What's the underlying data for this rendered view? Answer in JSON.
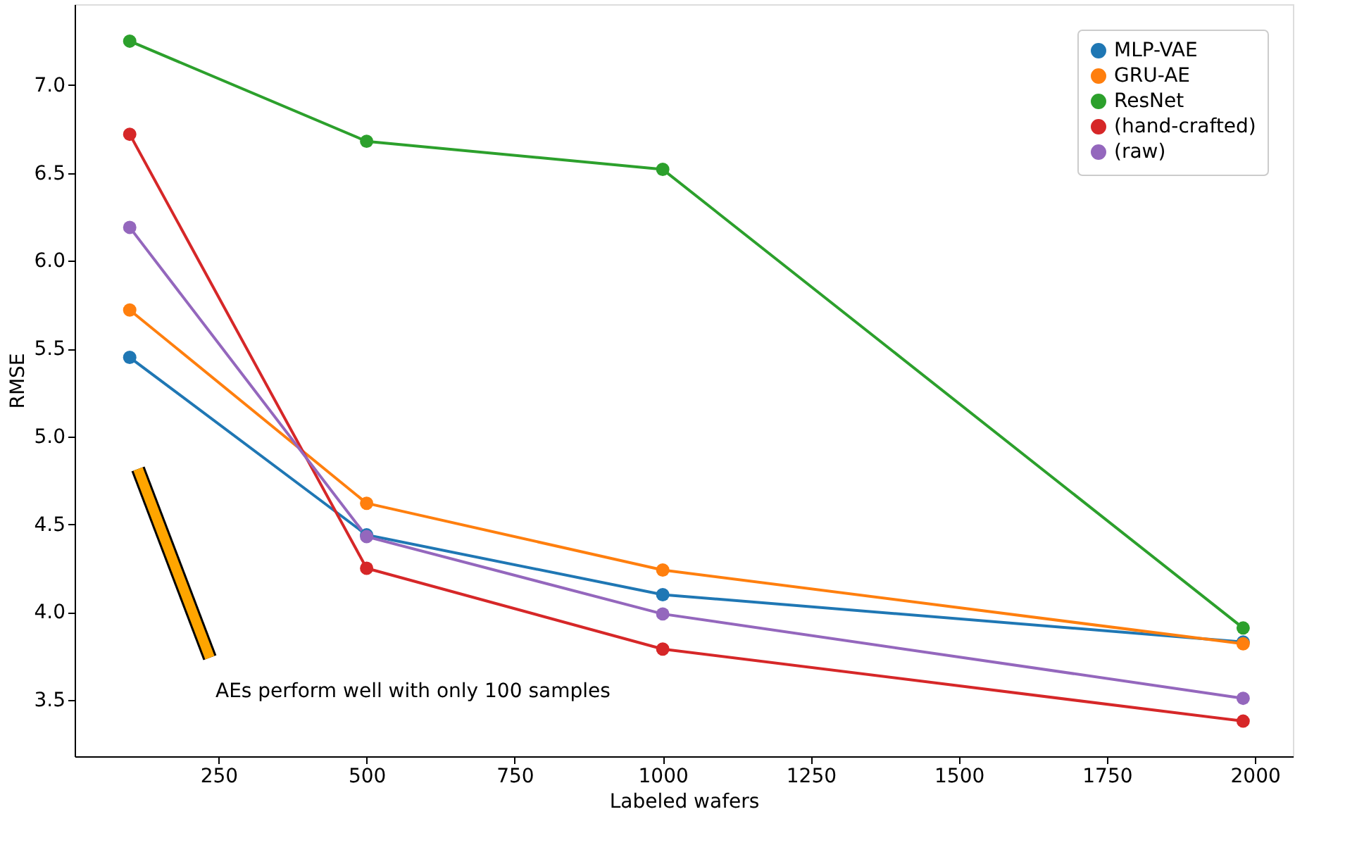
{
  "chart_data": {
    "type": "line",
    "xlabel": "Labeled wafers",
    "ylabel": "RMSE",
    "x": [
      100,
      500,
      1000,
      1980
    ],
    "series": [
      {
        "name": "MLP-VAE",
        "color": "#1f77b4",
        "values": [
          5.45,
          4.44,
          4.1,
          3.83
        ]
      },
      {
        "name": "GRU-AE",
        "color": "#ff7f0e",
        "values": [
          5.72,
          4.62,
          4.24,
          3.82
        ]
      },
      {
        "name": "ResNet",
        "color": "#2ca02c",
        "values": [
          7.25,
          6.68,
          6.52,
          3.91
        ]
      },
      {
        "name": "(hand-crafted)",
        "color": "#d62728",
        "values": [
          6.72,
          4.25,
          3.79,
          3.38
        ]
      },
      {
        "name": "(raw)",
        "color": "#9467bd",
        "values": [
          6.19,
          4.43,
          3.99,
          3.51
        ]
      }
    ],
    "xlim": [
      7,
      2064
    ],
    "ylim": [
      3.18,
      7.46
    ],
    "xticks": [
      250,
      500,
      750,
      1000,
      1250,
      1500,
      1750,
      2000
    ],
    "yticks": [
      3.5,
      {
        "value": 4,
        "label": "4.0"
      },
      4.5,
      {
        "value": 5,
        "label": "5.0"
      },
      5.5,
      {
        "value": 6,
        "label": "6.0"
      },
      6.5,
      {
        "value": 7,
        "label": "7.0"
      }
    ],
    "annotations": [
      "AEs perform well with only 100 samples"
    ],
    "legend": "top right",
    "marker": "circle",
    "grid": false,
    "line_style": "solid"
  }
}
